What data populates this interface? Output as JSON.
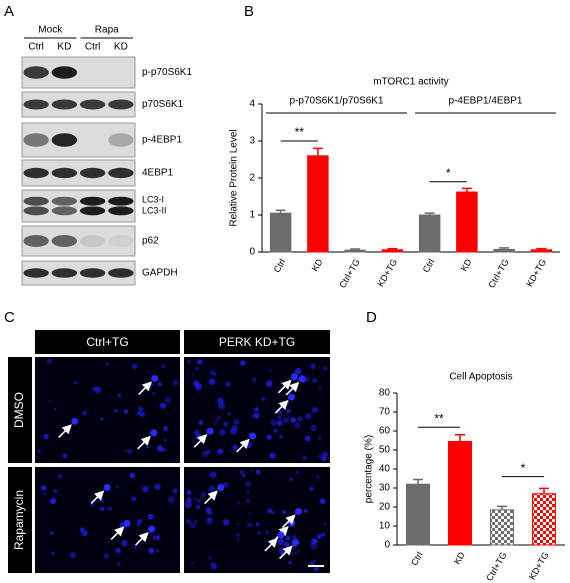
{
  "figure": {
    "panel_labels": [
      "A",
      "B",
      "C",
      "D"
    ]
  },
  "blot": {
    "groups": [
      "Mock",
      "Rapa"
    ],
    "lanes": [
      "Ctrl",
      "KD",
      "Ctrl",
      "KD"
    ],
    "rows": [
      [
        "p-p70S6K1"
      ],
      [
        "p70S6K1"
      ],
      [
        "p-4EBP1"
      ],
      [
        "4EBP1"
      ],
      [
        "LC3-I",
        "LC3-II"
      ],
      [
        "p62"
      ],
      [
        "GAPDH"
      ]
    ]
  },
  "micrograph": {
    "columns": [
      "Ctrl+TG",
      "PERK KD+TG"
    ],
    "rows": [
      "DMSO",
      "Rapamycin"
    ]
  },
  "chart_data": [
    {
      "type": "bar",
      "title": "mTORC1 activity",
      "y_label": "Relative Protein Level",
      "group_labels": [
        "p-p70S6K1/p70S6K1",
        "p-4EBP1/4EBP1"
      ],
      "categories": [
        "Ctrl",
        "KD",
        "Ctrl+TG",
        "KD+TG",
        "Ctrl",
        "KD",
        "Ctrl+TG",
        "KD+TG"
      ],
      "values": [
        1.05,
        2.6,
        0.05,
        0.06,
        1.0,
        1.62,
        0.07,
        0.06
      ],
      "errors": [
        0.08,
        0.2,
        0.03,
        0.03,
        0.05,
        0.1,
        0.04,
        0.03
      ],
      "colors": [
        "#6f6b6b",
        "#ff0000",
        "#6f6b6b",
        "#ff0000",
        "#6f6b6b",
        "#ff0000",
        "#6f6b6b",
        "#ff0000"
      ],
      "ylim": [
        0,
        4
      ],
      "yticks": [
        0,
        1,
        2,
        3,
        4
      ],
      "annotations": [
        {
          "text": "**",
          "y": 3.0,
          "from": 0,
          "to": 1
        },
        {
          "text": "*",
          "y": 1.9,
          "from": 4,
          "to": 5
        }
      ]
    },
    {
      "type": "bar",
      "title": "Cell Apoptosis",
      "y_label": "percentage (%)",
      "categories": [
        "Ctrl",
        "KD",
        "Ctrl+TG",
        "KD+TG"
      ],
      "values": [
        32,
        54.5,
        18.5,
        27
      ],
      "errors": [
        2.5,
        3.5,
        1.8,
        2.8
      ],
      "colors": [
        "#6f6b6b",
        "#ff0000",
        "#6f6b6b",
        "#ff0000"
      ],
      "checkered": [
        false,
        false,
        true,
        true
      ],
      "ylim": [
        0,
        80
      ],
      "yticks": [
        0,
        10,
        20,
        30,
        40,
        50,
        60,
        70,
        80
      ],
      "annotations": [
        {
          "text": "**",
          "y": 62,
          "from": 0,
          "to": 1
        },
        {
          "text": "*",
          "y": 36,
          "from": 2,
          "to": 3
        }
      ]
    }
  ]
}
